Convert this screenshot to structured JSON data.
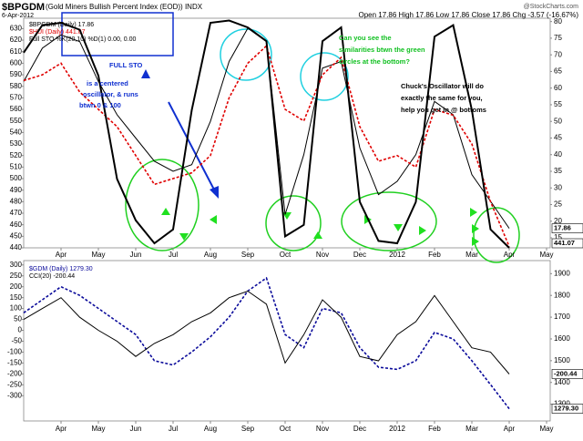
{
  "chart_data": [
    {
      "type": "line",
      "title": "$BPGDM",
      "subtitle": "(Gold Miners Bullish Percent Index (EOD)) INDX",
      "date": "6-Apr-2012",
      "quote": "Open 17.86  High 17.86  Low 17.86  Close 17.86  Chg -3.57 (-16.67%)",
      "source": "@StockCharts.com",
      "categories": [
        null,
        null,
        "Apr",
        null,
        "May",
        null,
        "Jun",
        null,
        "Jul",
        null,
        "Aug",
        null,
        "Sep",
        null,
        "Oct",
        null,
        "Nov",
        null,
        "Dec",
        null,
        "2012",
        null,
        "Feb",
        null,
        "Mar",
        null,
        "Apr",
        null,
        "May"
      ],
      "ylim": [
        440,
        639
      ],
      "yticks": [
        440,
        450,
        460,
        470,
        480,
        490,
        500,
        510,
        520,
        530,
        540,
        550,
        560,
        570,
        580,
        590,
        600,
        610,
        620,
        630
      ],
      "y2lim": [
        12,
        81
      ],
      "y2ticks": [
        15,
        20,
        25,
        30,
        35,
        40,
        45,
        50,
        55,
        60,
        65,
        70,
        75,
        80
      ],
      "y3lim": [
        0,
        100
      ],
      "series": [
        {
          "name": "$BPGDM (Daily) 17.86",
          "color": "#000000",
          "style": "solid",
          "width": 1,
          "axis": "y2",
          "values": [
            62,
            72,
            76,
            74,
            62,
            52,
            45,
            38,
            35,
            37,
            50,
            68,
            78,
            74,
            22,
            40,
            66,
            68,
            42,
            28,
            32,
            40,
            56,
            52,
            34,
            26,
            17.86,
            null,
            null
          ]
        },
        {
          "name": "$HUI (Daily) 441.07",
          "color": "#e00000",
          "style": "dashed",
          "width": 1.6,
          "axis": "y",
          "values": [
            585,
            590,
            600,
            575,
            560,
            545,
            520,
            495,
            500,
            505,
            520,
            570,
            600,
            615,
            560,
            550,
            590,
            605,
            545,
            515,
            520,
            510,
            560,
            555,
            530,
            480,
            441.07,
            null,
            null
          ]
        },
        {
          "name": "Full STO %K(20,10) %D(1) 0.00, 0.00",
          "color": "#000000",
          "style": "solid",
          "width": 2,
          "axis": "y3",
          "values": [
            85,
            97,
            98,
            95,
            75,
            30,
            12,
            2,
            8,
            60,
            98,
            99,
            96,
            90,
            5,
            10,
            90,
            96,
            20,
            3,
            2,
            20,
            92,
            97,
            60,
            8,
            0,
            null,
            null
          ]
        }
      ],
      "annotations": [
        {
          "lines": [
            "FULL STO"
          ],
          "color": "#1030d0"
        },
        {
          "lines": [
            "is a centered",
            "oscillator, & runs",
            "btwn 0 & 100"
          ],
          "color": "#1030d0"
        },
        {
          "lines": [
            "Can you see the",
            "similarities btwn the green",
            "circles at the bottom?"
          ],
          "color": "#10c020"
        },
        {
          "lines": [
            "Chuck's Oscillator will do",
            "exactly the same for you,",
            "help you get in @ bottoms"
          ],
          "color": "#000000"
        }
      ]
    },
    {
      "type": "line",
      "categories": [
        null,
        null,
        "Apr",
        null,
        "May",
        null,
        "Jun",
        null,
        "Jul",
        null,
        "Aug",
        null,
        "Sep",
        null,
        "Oct",
        null,
        "Nov",
        null,
        "Dec",
        null,
        "2012",
        null,
        "Feb",
        null,
        "Mar",
        null,
        "Apr",
        null,
        "May"
      ],
      "ylim": [
        -416,
        320
      ],
      "yticks": [
        -300,
        -250,
        -200,
        -150,
        -100,
        -50,
        0,
        50,
        100,
        150,
        200,
        250,
        300
      ],
      "y2lim": [
        1223,
        1960
      ],
      "y2ticks": [
        1300,
        1400,
        1500,
        1600,
        1700,
        1800,
        1900
      ],
      "series": [
        {
          "name": "$GDM (Daily) 1279.30",
          "color": "#0a0a9a",
          "style": "dashed",
          "width": 1.6,
          "axis": "y2",
          "values": [
            1720,
            1780,
            1840,
            1800,
            1740,
            1680,
            1620,
            1500,
            1480,
            1540,
            1610,
            1700,
            1820,
            1880,
            1620,
            1560,
            1740,
            1720,
            1560,
            1470,
            1460,
            1500,
            1630,
            1600,
            1500,
            1390,
            1279.3,
            null,
            null
          ],
          "value_labels": [
            null,
            null,
            null,
            null,
            null,
            null,
            null,
            null,
            null,
            null,
            null,
            null,
            null,
            null,
            null,
            null,
            null,
            null,
            null,
            null,
            null,
            null,
            null,
            null,
            null,
            null,
            "1279.30",
            null,
            null
          ]
        },
        {
          "name": "CCI(20) -200.44",
          "color": "#000000",
          "style": "solid",
          "width": 1,
          "axis": "y",
          "values": [
            50,
            100,
            150,
            60,
            0,
            -50,
            -120,
            -60,
            -20,
            40,
            80,
            150,
            180,
            120,
            -150,
            -20,
            140,
            60,
            -120,
            -140,
            -20,
            40,
            160,
            40,
            -80,
            -100,
            -200.44,
            null,
            null
          ]
        }
      ]
    }
  ]
}
